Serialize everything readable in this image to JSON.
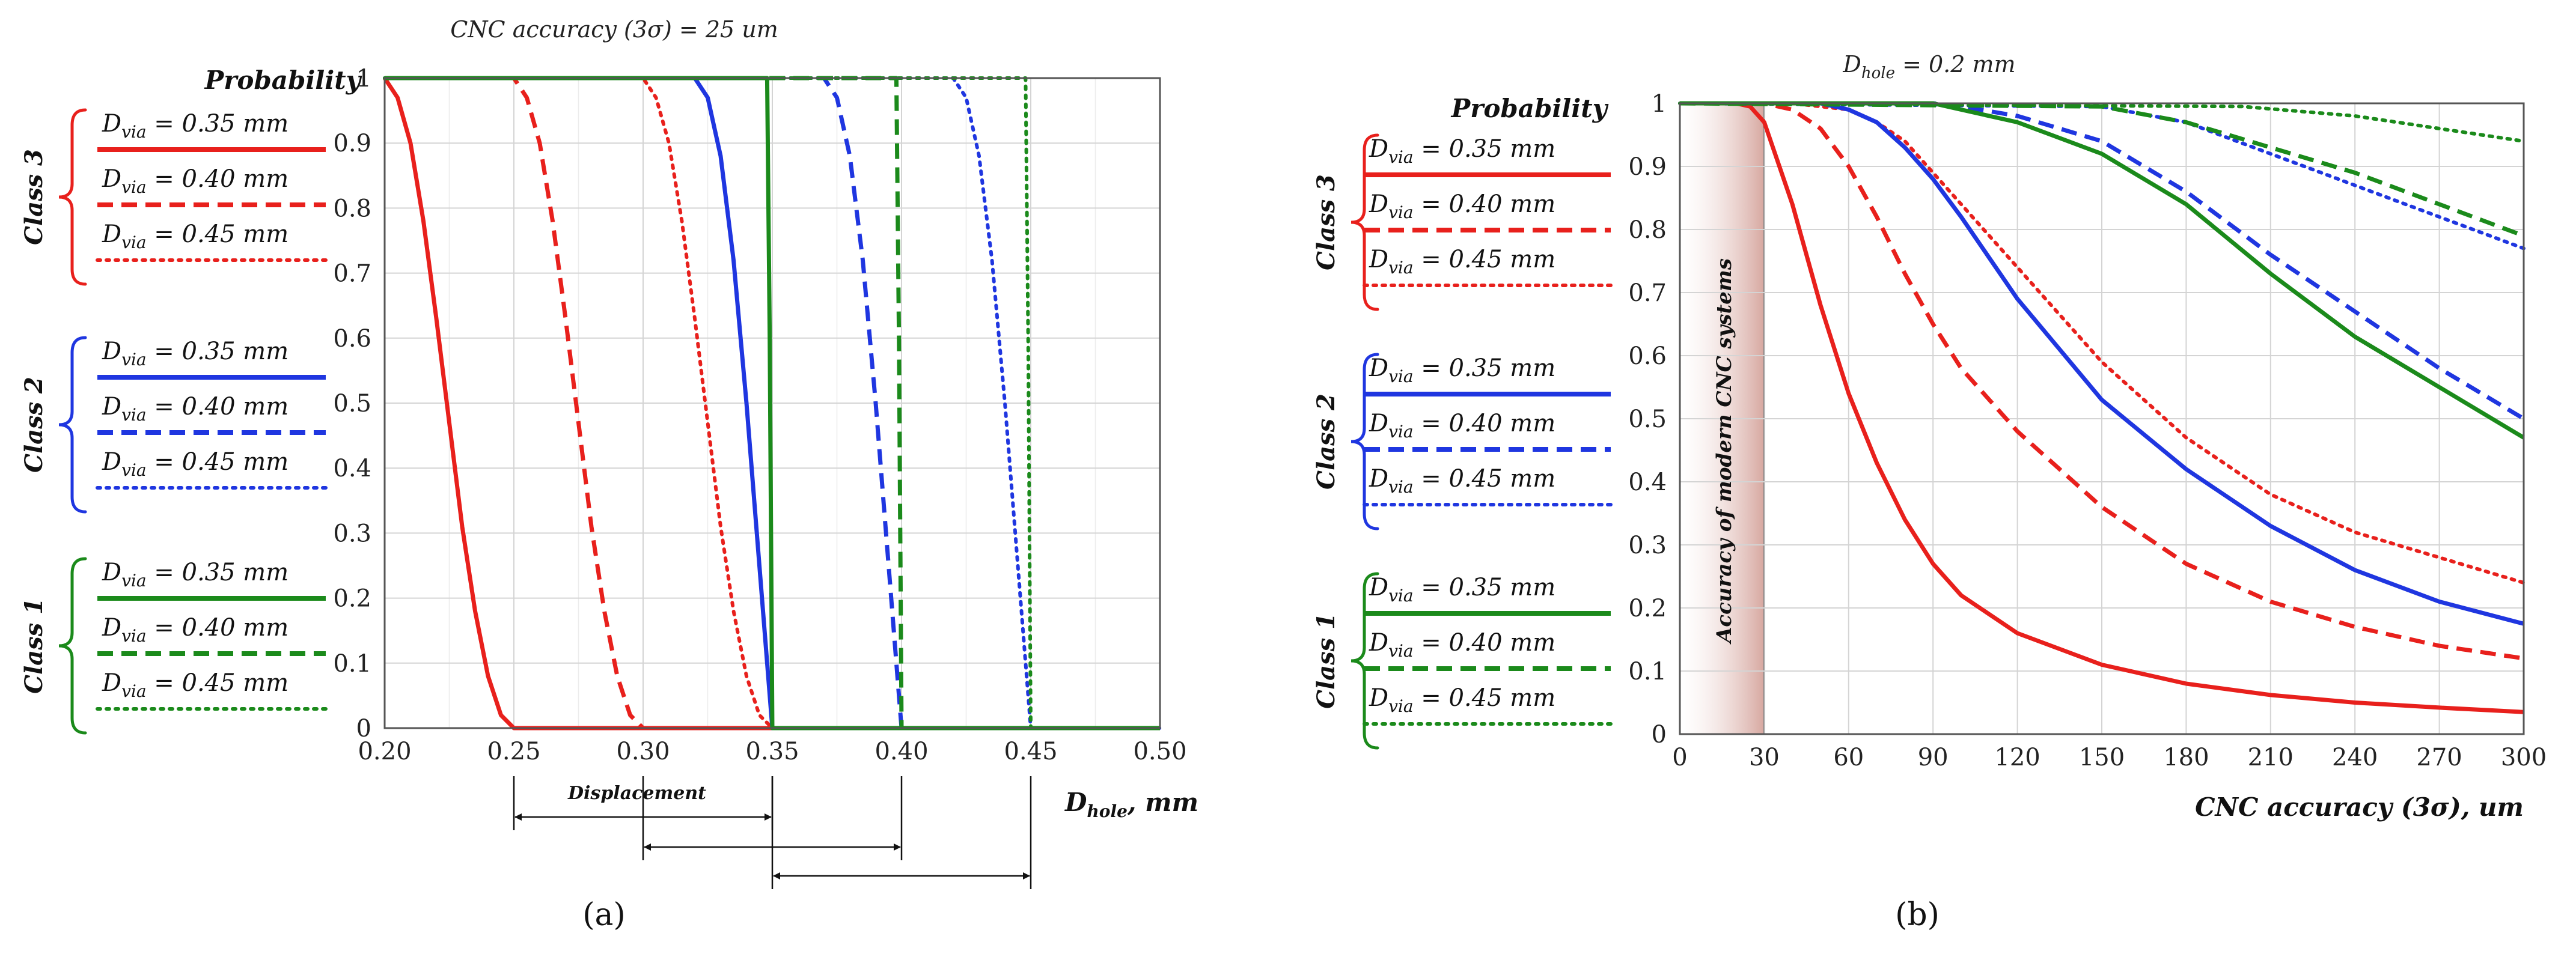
{
  "chart_data": [
    {
      "id": "a",
      "type": "line",
      "panel_label": "(a)",
      "title": "CNC accuracy (3σ) = 25 um",
      "xlabel": "D_hole, mm",
      "xlabel_main": "D",
      "xlabel_sub": "hole",
      "xlabel_tail": ", mm",
      "ylabel": "Probability",
      "xlim": [
        0.2,
        0.5
      ],
      "ylim": [
        0,
        1
      ],
      "x_ticks": [
        "0.20",
        "0.25",
        "0.30",
        "0.35",
        "0.40",
        "0.45",
        "0.50"
      ],
      "y_ticks": [
        "0",
        "0.1",
        "0.2",
        "0.3",
        "0.4",
        "0.5",
        "0.6",
        "0.7",
        "0.8",
        "0.9",
        "1"
      ],
      "grid": true,
      "annotation": "Displacement",
      "displacement_arrows": [
        [
          0.25,
          0.35
        ],
        [
          0.3,
          0.4
        ],
        [
          0.35,
          0.45
        ]
      ],
      "legend_groups": [
        {
          "label": "Class 3",
          "color": "#e8201c",
          "entries": [
            {
              "text": "D_via = 0.35 mm",
              "main": "D",
              "sub": "via",
              "value": " = 0.35 mm",
              "style": "solid"
            },
            {
              "text": "D_via = 0.40 mm",
              "main": "D",
              "sub": "via",
              "value": " = 0.40 mm",
              "style": "dashed"
            },
            {
              "text": "D_via = 0.45 mm",
              "main": "D",
              "sub": "via",
              "value": " = 0.45 mm",
              "style": "dotted"
            }
          ]
        },
        {
          "label": "Class 2",
          "color": "#1f36e0",
          "entries": [
            {
              "text": "D_via = 0.35 mm",
              "main": "D",
              "sub": "via",
              "value": " = 0.35 mm",
              "style": "solid"
            },
            {
              "text": "D_via = 0.40 mm",
              "main": "D",
              "sub": "via",
              "value": " = 0.40 mm",
              "style": "dashed"
            },
            {
              "text": "D_via = 0.45 mm",
              "main": "D",
              "sub": "via",
              "value": " = 0.45 mm",
              "style": "dotted"
            }
          ]
        },
        {
          "label": "Class 1",
          "color": "#1b8a1b",
          "entries": [
            {
              "text": "D_via = 0.35 mm",
              "main": "D",
              "sub": "via",
              "value": " = 0.35 mm",
              "style": "solid"
            },
            {
              "text": "D_via = 0.40 mm",
              "main": "D",
              "sub": "via",
              "value": " = 0.40 mm",
              "style": "dashed"
            },
            {
              "text": "D_via = 0.45 mm",
              "main": "D",
              "sub": "via",
              "value": " = 0.45 mm",
              "style": "dotted"
            }
          ]
        }
      ],
      "series": [
        {
          "name": "Class 3, D_via = 0.35 mm",
          "color": "#e8201c",
          "style": "solid",
          "x": [
            0.2,
            0.205,
            0.21,
            0.215,
            0.22,
            0.225,
            0.23,
            0.235,
            0.24,
            0.245,
            0.25,
            0.35,
            0.5
          ],
          "y": [
            1,
            0.97,
            0.9,
            0.78,
            0.63,
            0.47,
            0.31,
            0.18,
            0.08,
            0.02,
            0,
            0,
            0
          ]
        },
        {
          "name": "Class 3, D_via = 0.40 mm",
          "color": "#e8201c",
          "style": "dashed",
          "x": [
            0.2,
            0.25,
            0.255,
            0.26,
            0.265,
            0.27,
            0.275,
            0.28,
            0.285,
            0.29,
            0.295,
            0.3,
            0.5
          ],
          "y": [
            1,
            1,
            0.97,
            0.9,
            0.78,
            0.63,
            0.47,
            0.31,
            0.18,
            0.08,
            0.02,
            0,
            0
          ]
        },
        {
          "name": "Class 3, D_via = 0.45 mm",
          "color": "#e8201c",
          "style": "dotted",
          "x": [
            0.2,
            0.3,
            0.305,
            0.31,
            0.315,
            0.32,
            0.325,
            0.33,
            0.335,
            0.34,
            0.345,
            0.35,
            0.5
          ],
          "y": [
            1,
            1,
            0.97,
            0.9,
            0.78,
            0.63,
            0.47,
            0.31,
            0.18,
            0.08,
            0.02,
            0,
            0
          ]
        },
        {
          "name": "Class 2, D_via = 0.35 mm",
          "color": "#1f36e0",
          "style": "solid",
          "x": [
            0.2,
            0.32,
            0.325,
            0.33,
            0.335,
            0.34,
            0.345,
            0.35,
            0.5
          ],
          "y": [
            1,
            1,
            0.97,
            0.88,
            0.72,
            0.5,
            0.25,
            0,
            0
          ]
        },
        {
          "name": "Class 2, D_via = 0.40 mm",
          "color": "#1f36e0",
          "style": "dashed",
          "x": [
            0.2,
            0.37,
            0.375,
            0.38,
            0.385,
            0.39,
            0.395,
            0.4,
            0.5
          ],
          "y": [
            1,
            1,
            0.97,
            0.88,
            0.72,
            0.5,
            0.25,
            0,
            0
          ]
        },
        {
          "name": "Class 2, D_via = 0.45 mm",
          "color": "#1f36e0",
          "style": "dotted",
          "x": [
            0.2,
            0.42,
            0.425,
            0.43,
            0.435,
            0.44,
            0.445,
            0.45,
            0.5
          ],
          "y": [
            1,
            1,
            0.97,
            0.88,
            0.72,
            0.5,
            0.25,
            0,
            0
          ]
        },
        {
          "name": "Class 1, D_via = 0.35 mm",
          "color": "#1b8a1b",
          "style": "solid",
          "x": [
            0.2,
            0.348,
            0.349,
            0.35,
            0.5
          ],
          "y": [
            1,
            1,
            0.6,
            0,
            0
          ]
        },
        {
          "name": "Class 1, D_via = 0.40 mm",
          "color": "#1b8a1b",
          "style": "dashed",
          "x": [
            0.2,
            0.398,
            0.399,
            0.4,
            0.5
          ],
          "y": [
            1,
            1,
            0.6,
            0,
            0
          ]
        },
        {
          "name": "Class 1, D_via = 0.45 mm",
          "color": "#1b8a1b",
          "style": "dotted",
          "x": [
            0.2,
            0.448,
            0.449,
            0.45,
            0.5
          ],
          "y": [
            1,
            1,
            0.6,
            0,
            0
          ]
        }
      ]
    },
    {
      "id": "b",
      "type": "line",
      "panel_label": "(b)",
      "title": "D_hole = 0.2 mm",
      "title_main": "D",
      "title_sub": "hole",
      "title_tail": " = 0.2 mm",
      "xlabel": "CNC accuracy (3σ), um",
      "ylabel": "Probability",
      "xlim": [
        0,
        300
      ],
      "ylim": [
        0,
        1
      ],
      "x_ticks": [
        "0",
        "30",
        "60",
        "90",
        "120",
        "150",
        "180",
        "210",
        "240",
        "270",
        "300"
      ],
      "y_ticks": [
        "0",
        "0.1",
        "0.2",
        "0.3",
        "0.4",
        "0.5",
        "0.6",
        "0.7",
        "0.8",
        "0.9",
        "1"
      ],
      "grid": true,
      "annotation": "Accuracy of modern CNC systems",
      "shaded_range": [
        0,
        30
      ],
      "legend_groups": [
        {
          "label": "Class 3",
          "color": "#e8201c",
          "entries": [
            {
              "text": "D_via = 0.35 mm",
              "main": "D",
              "sub": "via",
              "value": " = 0.35 mm",
              "style": "solid"
            },
            {
              "text": "D_via = 0.40 mm",
              "main": "D",
              "sub": "via",
              "value": " = 0.40 mm",
              "style": "dashed"
            },
            {
              "text": "D_via = 0.45 mm",
              "main": "D",
              "sub": "via",
              "value": " = 0.45 mm",
              "style": "dotted"
            }
          ]
        },
        {
          "label": "Class 2",
          "color": "#1f36e0",
          "entries": [
            {
              "text": "D_via = 0.35 mm",
              "main": "D",
              "sub": "via",
              "value": " = 0.35 mm",
              "style": "solid"
            },
            {
              "text": "D_via = 0.40 mm",
              "main": "D",
              "sub": "via",
              "value": " = 0.40 mm",
              "style": "dashed"
            },
            {
              "text": "D_via = 0.45 mm",
              "main": "D",
              "sub": "via",
              "value": " = 0.45 mm",
              "style": "dotted"
            }
          ]
        },
        {
          "label": "Class 1",
          "color": "#1b8a1b",
          "entries": [
            {
              "text": "D_via = 0.35 mm",
              "main": "D",
              "sub": "via",
              "value": " = 0.35 mm",
              "style": "solid"
            },
            {
              "text": "D_via = 0.40 mm",
              "main": "D",
              "sub": "via",
              "value": " = 0.40 mm",
              "style": "dashed"
            },
            {
              "text": "D_via = 0.45 mm",
              "main": "D",
              "sub": "via",
              "value": " = 0.45 mm",
              "style": "dotted"
            }
          ]
        }
      ],
      "series": [
        {
          "name": "Class 3, D_via = 0.35 mm",
          "color": "#e8201c",
          "style": "solid",
          "x": [
            0,
            20,
            25,
            30,
            40,
            50,
            60,
            70,
            80,
            90,
            100,
            120,
            150,
            180,
            210,
            240,
            270,
            300
          ],
          "y": [
            1,
            1,
            0.995,
            0.97,
            0.84,
            0.68,
            0.54,
            0.43,
            0.34,
            0.27,
            0.22,
            0.16,
            0.11,
            0.08,
            0.062,
            0.05,
            0.042,
            0.035
          ]
        },
        {
          "name": "Class 3, D_via = 0.40 mm",
          "color": "#e8201c",
          "style": "dashed",
          "x": [
            0,
            30,
            40,
            50,
            60,
            70,
            80,
            90,
            100,
            120,
            150,
            180,
            210,
            240,
            270,
            300
          ],
          "y": [
            1,
            1,
            0.99,
            0.96,
            0.9,
            0.82,
            0.73,
            0.65,
            0.58,
            0.48,
            0.36,
            0.27,
            0.21,
            0.17,
            0.14,
            0.12
          ]
        },
        {
          "name": "Class 3, D_via = 0.45 mm",
          "color": "#e8201c",
          "style": "dotted",
          "x": [
            0,
            40,
            60,
            70,
            80,
            90,
            100,
            120,
            150,
            180,
            210,
            240,
            270,
            300
          ],
          "y": [
            1,
            1,
            0.99,
            0.97,
            0.94,
            0.89,
            0.84,
            0.74,
            0.59,
            0.47,
            0.38,
            0.32,
            0.28,
            0.24
          ]
        },
        {
          "name": "Class 2, D_via = 0.35 mm",
          "color": "#1f36e0",
          "style": "solid",
          "x": [
            0,
            50,
            60,
            70,
            80,
            90,
            100,
            120,
            150,
            180,
            210,
            240,
            270,
            300
          ],
          "y": [
            1,
            1,
            0.99,
            0.97,
            0.93,
            0.88,
            0.82,
            0.69,
            0.53,
            0.42,
            0.33,
            0.26,
            0.21,
            0.175
          ]
        },
        {
          "name": "Class 2, D_via = 0.40 mm",
          "color": "#1f36e0",
          "style": "dashed",
          "x": [
            0,
            90,
            100,
            120,
            150,
            180,
            210,
            240,
            270,
            300
          ],
          "y": [
            1,
            1,
            0.995,
            0.98,
            0.94,
            0.86,
            0.76,
            0.67,
            0.58,
            0.5
          ]
        },
        {
          "name": "Class 2, D_via = 0.45 mm",
          "color": "#1f36e0",
          "style": "dotted",
          "x": [
            0,
            150,
            180,
            210,
            240,
            270,
            300
          ],
          "y": [
            1,
            0.995,
            0.97,
            0.92,
            0.87,
            0.82,
            0.77
          ]
        },
        {
          "name": "Class 1, D_via = 0.35 mm",
          "color": "#1b8a1b",
          "style": "solid",
          "x": [
            0,
            90,
            100,
            120,
            150,
            180,
            210,
            240,
            270,
            300
          ],
          "y": [
            1,
            1,
            0.99,
            0.97,
            0.92,
            0.84,
            0.73,
            0.63,
            0.55,
            0.47
          ]
        },
        {
          "name": "Class 1, D_via = 0.40 mm",
          "color": "#1b8a1b",
          "style": "dashed",
          "x": [
            0,
            150,
            180,
            210,
            240,
            270,
            300
          ],
          "y": [
            1,
            0.995,
            0.97,
            0.93,
            0.89,
            0.84,
            0.79
          ]
        },
        {
          "name": "Class 1, D_via = 0.45 mm",
          "color": "#1b8a1b",
          "style": "dotted",
          "x": [
            0,
            200,
            240,
            270,
            300
          ],
          "y": [
            1,
            0.995,
            0.98,
            0.96,
            0.94
          ]
        }
      ]
    }
  ]
}
